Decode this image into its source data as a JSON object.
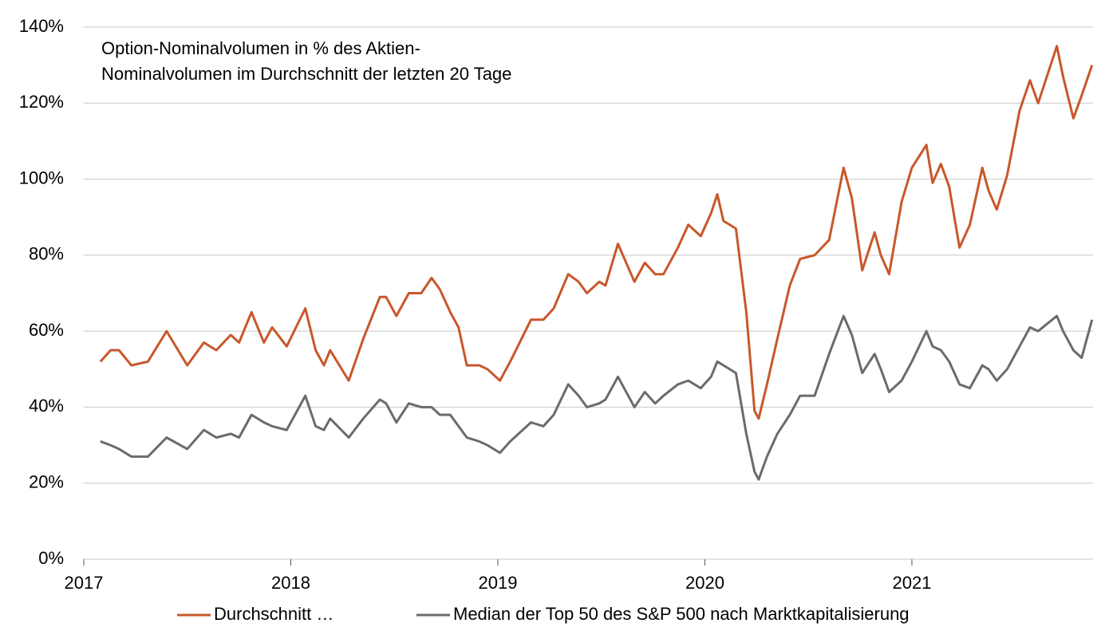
{
  "chart_data": {
    "type": "line",
    "annotation": [
      "Option-Nominalvolumen in % des Aktien-",
      "Nominalvolumen im Durchschnitt der letzten 20 Tage"
    ],
    "x": [
      2017.08,
      2017.13,
      2017.17,
      2017.23,
      2017.31,
      2017.4,
      2017.5,
      2017.58,
      2017.64,
      2017.71,
      2017.75,
      2017.81,
      2017.87,
      2017.91,
      2017.98,
      2018.07,
      2018.12,
      2018.16,
      2018.19,
      2018.28,
      2018.35,
      2018.43,
      2018.46,
      2018.51,
      2018.57,
      2018.63,
      2018.68,
      2018.72,
      2018.77,
      2018.81,
      2018.85,
      2018.91,
      2018.95,
      2019.01,
      2019.06,
      2019.16,
      2019.22,
      2019.27,
      2019.34,
      2019.39,
      2019.43,
      2019.49,
      2019.52,
      2019.58,
      2019.66,
      2019.71,
      2019.76,
      2019.8,
      2019.87,
      2019.92,
      2019.98,
      2020.03,
      2020.06,
      2020.09,
      2020.15,
      2020.2,
      2020.24,
      2020.26,
      2020.3,
      2020.35,
      2020.41,
      2020.46,
      2020.53,
      2020.6,
      2020.67,
      2020.71,
      2020.76,
      2020.82,
      2020.85,
      2020.89,
      2020.95,
      2021.0,
      2021.07,
      2021.1,
      2021.14,
      2021.18,
      2021.23,
      2021.28,
      2021.34,
      2021.37,
      2021.41,
      2021.46,
      2021.52,
      2021.57,
      2021.61,
      2021.7,
      2021.73,
      2021.78,
      2021.82,
      2021.87
    ],
    "series": [
      {
        "name": "Durchschnitt …",
        "color": "#c8572b",
        "values": [
          52,
          55,
          55,
          51,
          52,
          60,
          51,
          57,
          55,
          59,
          57,
          65,
          57,
          61,
          56,
          66,
          55,
          51,
          55,
          47,
          58,
          69,
          69,
          64,
          70,
          70,
          74,
          71,
          65,
          61,
          51,
          51,
          50,
          47,
          52,
          63,
          63,
          66,
          75,
          73,
          70,
          73,
          72,
          83,
          73,
          78,
          75,
          75,
          82,
          88,
          85,
          91,
          96,
          89,
          87,
          65,
          39,
          37,
          46,
          58,
          72,
          79,
          80,
          84,
          103,
          95,
          76,
          86,
          80,
          75,
          94,
          103,
          109,
          99,
          104,
          98,
          82,
          88,
          103,
          97,
          92,
          101,
          118,
          126,
          120,
          135,
          127,
          116,
          122,
          130
        ]
      },
      {
        "name": "Median der Top 50 des S&P 500 nach Marktkapitalisierung",
        "color": "#6b6b6b",
        "values": [
          31,
          30,
          29,
          27,
          27,
          32,
          29,
          34,
          32,
          33,
          32,
          38,
          36,
          35,
          34,
          43,
          35,
          34,
          37,
          32,
          37,
          42,
          41,
          36,
          41,
          40,
          40,
          38,
          38,
          35,
          32,
          31,
          30,
          28,
          31,
          36,
          35,
          38,
          46,
          43,
          40,
          41,
          42,
          48,
          40,
          44,
          41,
          43,
          46,
          47,
          45,
          48,
          52,
          51,
          49,
          33,
          23,
          21,
          27,
          33,
          38,
          43,
          43,
          54,
          64,
          59,
          49,
          54,
          50,
          44,
          47,
          52,
          60,
          56,
          55,
          52,
          46,
          45,
          51,
          50,
          47,
          50,
          56,
          61,
          60,
          64,
          60,
          55,
          53,
          63
        ]
      }
    ],
    "xlim": [
      2017,
      2021.875
    ],
    "xticks": [
      2017,
      2018,
      2019,
      2020,
      2021
    ],
    "ylim": [
      0,
      140
    ],
    "yticks": [
      {
        "value": 0,
        "label": "0%"
      },
      {
        "value": 20,
        "label": "20%"
      },
      {
        "value": 40,
        "label": "40%"
      },
      {
        "value": 60,
        "label": "60%"
      },
      {
        "value": 80,
        "label": "80%"
      },
      {
        "value": 100,
        "label": "100%"
      },
      {
        "value": 120,
        "label": "120%"
      },
      {
        "value": 140,
        "label": "140%"
      }
    ],
    "grid": true,
    "legend": "bottom"
  }
}
